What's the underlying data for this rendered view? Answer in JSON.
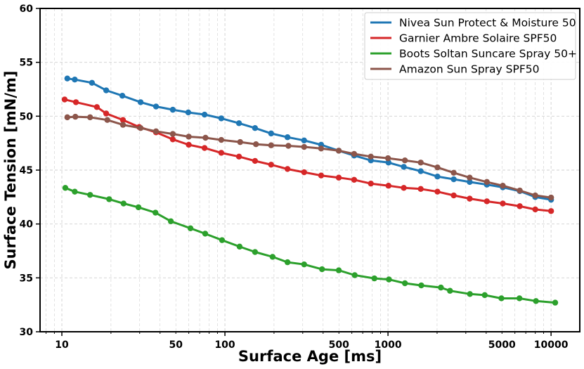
{
  "chart_data": {
    "type": "line",
    "title": "",
    "xlabel": "Surface Age [ms]",
    "ylabel": "Surface Tension [mN/m]",
    "xscale": "log",
    "xlim": [
      7.35,
      15000
    ],
    "ylim": [
      30,
      60
    ],
    "xticks": [
      10,
      50,
      100,
      500,
      1000,
      5000,
      10000
    ],
    "xtick_labels": [
      "10",
      "50",
      "100",
      "500",
      "1000",
      "5000",
      "10000"
    ],
    "yticks": [
      30,
      35,
      40,
      45,
      50,
      55,
      60
    ],
    "ytick_labels": [
      "30",
      "35",
      "40",
      "45",
      "50",
      "55",
      "60"
    ],
    "grid": true,
    "legend_placement": "top-right",
    "series": [
      {
        "name": "Nivea Sun Protect & Moisture 50",
        "color": "#1f77b4",
        "x": [
          10.8,
          12.0,
          15.3,
          18.7,
          23.5,
          30.4,
          37.8,
          47.9,
          59.6,
          75,
          95,
          122,
          153,
          192,
          242,
          306,
          389,
          499,
          620,
          785,
          1007,
          1250,
          1588,
          2010,
          2530,
          3170,
          4040,
          5060,
          6430,
          8000,
          10000
        ],
        "y": [
          53.5,
          53.4,
          53.1,
          52.4,
          51.9,
          51.3,
          50.9,
          50.6,
          50.35,
          50.15,
          49.8,
          49.35,
          48.9,
          48.4,
          48.05,
          47.75,
          47.35,
          46.8,
          46.35,
          45.9,
          45.7,
          45.3,
          44.9,
          44.4,
          44.15,
          43.9,
          43.65,
          43.4,
          43.05,
          42.5,
          42.25
        ]
      },
      {
        "name": "Garnier Ambre Solaire SPF50",
        "color": "#d62728",
        "x": [
          10.4,
          12.2,
          16.4,
          18.7,
          23.7,
          29.8,
          37.8,
          47.9,
          60,
          75,
          95,
          122,
          153,
          192,
          242,
          306,
          389,
          499,
          620,
          785,
          1007,
          1250,
          1588,
          2010,
          2530,
          3170,
          4040,
          5060,
          6430,
          8000,
          10000
        ],
        "y": [
          51.55,
          51.3,
          50.85,
          50.25,
          49.65,
          49.0,
          48.5,
          47.85,
          47.35,
          47.05,
          46.6,
          46.25,
          45.85,
          45.5,
          45.1,
          44.8,
          44.5,
          44.3,
          44.1,
          43.75,
          43.55,
          43.35,
          43.25,
          43.0,
          42.65,
          42.35,
          42.1,
          41.9,
          41.65,
          41.35,
          41.2
        ]
      },
      {
        "name": "Boots Soltan Suncare Spray 50+",
        "color": "#2ca02c",
        "x": [
          10.5,
          12.0,
          14.9,
          19.5,
          23.9,
          29.5,
          37.5,
          46.6,
          61.5,
          75.7,
          96,
          123,
          153,
          196,
          242,
          306,
          394,
          499,
          625,
          825,
          1013,
          1270,
          1600,
          2110,
          2400,
          3180,
          3920,
          4960,
          6400,
          8080,
          10600
        ],
        "y": [
          43.35,
          43.0,
          42.7,
          42.3,
          41.9,
          41.55,
          41.05,
          40.25,
          39.6,
          39.1,
          38.5,
          37.9,
          37.4,
          36.95,
          36.45,
          36.25,
          35.8,
          35.7,
          35.25,
          34.95,
          34.85,
          34.5,
          34.3,
          34.1,
          33.8,
          33.5,
          33.4,
          33.1,
          33.1,
          32.85,
          32.7
        ]
      },
      {
        "name": "Amazon Sun Spray SPF50",
        "color": "#8c564b",
        "x": [
          10.8,
          12.1,
          14.9,
          19.0,
          23.7,
          30.4,
          37.8,
          47.9,
          60,
          76,
          95,
          124,
          155,
          192,
          245,
          306,
          389,
          499,
          620,
          785,
          1000,
          1270,
          1588,
          2010,
          2530,
          3170,
          4040,
          5060,
          6430,
          8000,
          10000
        ],
        "y": [
          49.9,
          49.95,
          49.9,
          49.65,
          49.2,
          48.9,
          48.6,
          48.35,
          48.1,
          48.0,
          47.8,
          47.6,
          47.4,
          47.3,
          47.25,
          47.15,
          47.0,
          46.8,
          46.5,
          46.25,
          46.1,
          45.9,
          45.7,
          45.25,
          44.75,
          44.3,
          43.9,
          43.55,
          43.1,
          42.65,
          42.45
        ]
      }
    ]
  }
}
